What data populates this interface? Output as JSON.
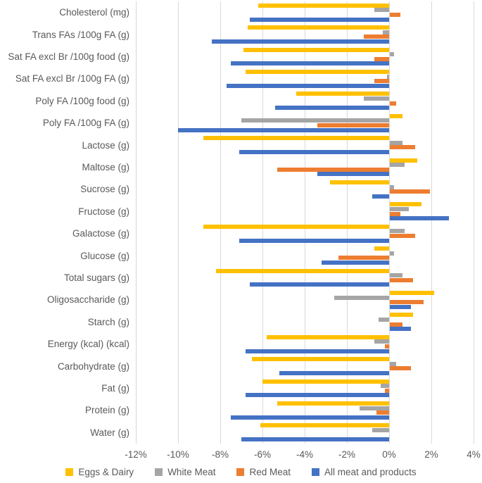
{
  "chart_data": {
    "type": "bar",
    "orientation": "horizontal",
    "title": "",
    "xlabel": "",
    "ylabel": "",
    "categories": [
      "Cholesterol (mg)",
      "Trans FAs /100g FA (g)",
      "Sat FA excl Br /100g food (g)",
      "Sat FA excl Br /100g FA (g)",
      "Poly FA /100g food (g)",
      "Poly FA /100g FA (g)",
      "Lactose (g)",
      "Maltose (g)",
      "Sucrose (g)",
      "Fructose (g)",
      "Galactose (g)",
      "Glucose (g)",
      "Total sugars (g)",
      "Oligosaccharide (g)",
      "Starch (g)",
      "Energy (kcal) (kcal)",
      "Carbohydrate (g)",
      "Fat (g)",
      "Protein (g)",
      "Water (g)"
    ],
    "series": [
      {
        "name": "Eggs & Dairy",
        "color": "#FFC000",
        "values": [
          -6.2,
          -6.7,
          -6.9,
          -6.8,
          -4.4,
          0.6,
          -8.8,
          1.3,
          -2.8,
          1.5,
          -8.8,
          -0.7,
          -8.2,
          2.1,
          1.1,
          -5.8,
          -6.5,
          -6.0,
          -5.3,
          -6.1
        ]
      },
      {
        "name": "White Meat",
        "color": "#A5A5A5",
        "values": [
          -0.7,
          -0.3,
          0.2,
          -0.1,
          -1.2,
          -7.0,
          0.6,
          0.7,
          0.2,
          0.9,
          0.7,
          0.2,
          0.6,
          -2.6,
          -0.5,
          -0.7,
          0.3,
          -0.4,
          -1.4,
          -0.8
        ]
      },
      {
        "name": "Red Meat",
        "color": "#ED7D31",
        "values": [
          0.5,
          -1.2,
          -0.7,
          -0.7,
          0.3,
          -3.4,
          1.2,
          -5.3,
          1.9,
          0.5,
          1.2,
          -2.4,
          1.1,
          1.6,
          0.6,
          -0.2,
          1.0,
          -0.2,
          -0.6,
          0.0
        ]
      },
      {
        "name": "All meat and products",
        "color": "#4472C4",
        "values": [
          -6.6,
          -8.4,
          -7.5,
          -7.7,
          -5.4,
          -10.0,
          -7.1,
          -3.4,
          -0.8,
          2.8,
          -7.1,
          -3.2,
          -6.6,
          1.0,
          1.0,
          -6.8,
          -5.2,
          -6.8,
          -7.5,
          -7.0
        ]
      }
    ],
    "x_axis": {
      "min": -12,
      "max": 4,
      "tick_step": 2,
      "tick_labels": [
        "-12%",
        "-10%",
        "-8%",
        "-6%",
        "-4%",
        "-2%",
        "0%",
        "2%",
        "4%"
      ],
      "tick_values": [
        -12,
        -10,
        -8,
        -6,
        -4,
        -2,
        0,
        2,
        4
      ],
      "unit": "percent"
    },
    "grid": "vertical-on",
    "legend_position": "bottom"
  },
  "colors": {
    "gridline": "#D9D9D9",
    "axis_text": "#595959",
    "background": "#FFFFFF"
  }
}
